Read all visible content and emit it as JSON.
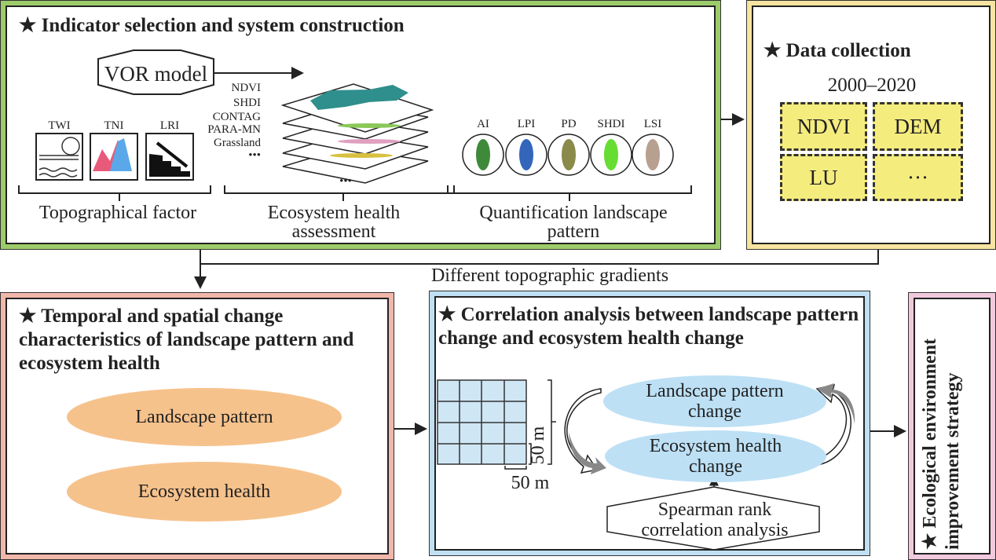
{
  "colors": {
    "green": "#9ccc6a",
    "yellow": "#f7e4a0",
    "salmon": "#f1b7aa",
    "blue": "#bfe0f3",
    "pink": "#f0c9dd",
    "cell": "#f5ec7e",
    "orange": "#f6c28c",
    "lightblue": "#bde0f5"
  },
  "indicator": {
    "title": "★ Indicator selection and system construction",
    "vor": "VOR model",
    "topo_icons": [
      "TWI",
      "TNI",
      "LRI"
    ],
    "layers": [
      "NDVI",
      "SHDI",
      "CONTAG",
      "PARA-MN",
      "Grassland",
      "•••"
    ],
    "layers_more": "•••",
    "metrics": [
      "AI",
      "LPI",
      "PD",
      "SHDI",
      "LSI"
    ],
    "group_topo": "Topographical factor",
    "group_eco": "Ecosystem health assessment",
    "group_land": "Quantification landscape pattern"
  },
  "data_collection": {
    "title": "★ Data collection",
    "years": "2000–2020",
    "items": [
      "NDVI",
      "DEM",
      "LU",
      "···"
    ]
  },
  "gradient_label": "Different topographic gradients",
  "temporal": {
    "title": "★ Temporal and spatial change characteristics of landscape pattern and ecosystem health",
    "items": [
      "Landscape pattern",
      "Ecosystem health"
    ]
  },
  "correlation": {
    "title": "★ Correlation analysis between landscape pattern change and ecosystem health change",
    "grid_v": "50 m",
    "grid_h": "50 m",
    "landscape": "Landscape pattern change",
    "ecosystem": "Ecosystem health change",
    "spearman": "Spearman rank correlation analysis"
  },
  "strategy": {
    "title": "★ Ecological environment improvement strategy"
  }
}
